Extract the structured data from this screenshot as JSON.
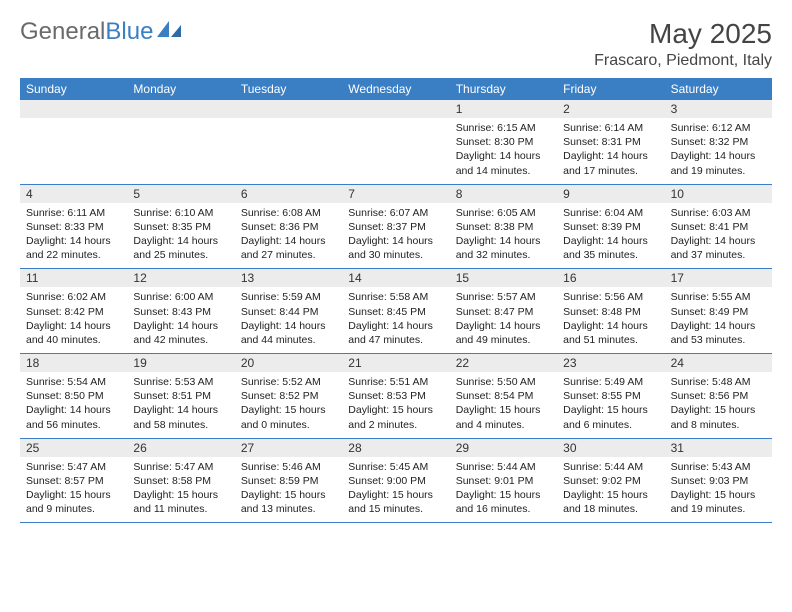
{
  "brand": {
    "text1": "General",
    "text2": "Blue"
  },
  "title": "May 2025",
  "location": "Frascaro, Piedmont, Italy",
  "colors": {
    "header_bar": "#3a7fc4",
    "num_strip": "#ececec",
    "row_border": "#3a7fc4",
    "text": "#222222",
    "logo_gray": "#6a6a6a",
    "logo_blue": "#3a7fc4",
    "background": "#ffffff"
  },
  "dow": [
    "Sunday",
    "Monday",
    "Tuesday",
    "Wednesday",
    "Thursday",
    "Friday",
    "Saturday"
  ],
  "weeks": [
    [
      {
        "n": "",
        "lines": []
      },
      {
        "n": "",
        "lines": []
      },
      {
        "n": "",
        "lines": []
      },
      {
        "n": "",
        "lines": []
      },
      {
        "n": "1",
        "lines": [
          "Sunrise: 6:15 AM",
          "Sunset: 8:30 PM",
          "Daylight: 14 hours",
          "and 14 minutes."
        ]
      },
      {
        "n": "2",
        "lines": [
          "Sunrise: 6:14 AM",
          "Sunset: 8:31 PM",
          "Daylight: 14 hours",
          "and 17 minutes."
        ]
      },
      {
        "n": "3",
        "lines": [
          "Sunrise: 6:12 AM",
          "Sunset: 8:32 PM",
          "Daylight: 14 hours",
          "and 19 minutes."
        ]
      }
    ],
    [
      {
        "n": "4",
        "lines": [
          "Sunrise: 6:11 AM",
          "Sunset: 8:33 PM",
          "Daylight: 14 hours",
          "and 22 minutes."
        ]
      },
      {
        "n": "5",
        "lines": [
          "Sunrise: 6:10 AM",
          "Sunset: 8:35 PM",
          "Daylight: 14 hours",
          "and 25 minutes."
        ]
      },
      {
        "n": "6",
        "lines": [
          "Sunrise: 6:08 AM",
          "Sunset: 8:36 PM",
          "Daylight: 14 hours",
          "and 27 minutes."
        ]
      },
      {
        "n": "7",
        "lines": [
          "Sunrise: 6:07 AM",
          "Sunset: 8:37 PM",
          "Daylight: 14 hours",
          "and 30 minutes."
        ]
      },
      {
        "n": "8",
        "lines": [
          "Sunrise: 6:05 AM",
          "Sunset: 8:38 PM",
          "Daylight: 14 hours",
          "and 32 minutes."
        ]
      },
      {
        "n": "9",
        "lines": [
          "Sunrise: 6:04 AM",
          "Sunset: 8:39 PM",
          "Daylight: 14 hours",
          "and 35 minutes."
        ]
      },
      {
        "n": "10",
        "lines": [
          "Sunrise: 6:03 AM",
          "Sunset: 8:41 PM",
          "Daylight: 14 hours",
          "and 37 minutes."
        ]
      }
    ],
    [
      {
        "n": "11",
        "lines": [
          "Sunrise: 6:02 AM",
          "Sunset: 8:42 PM",
          "Daylight: 14 hours",
          "and 40 minutes."
        ]
      },
      {
        "n": "12",
        "lines": [
          "Sunrise: 6:00 AM",
          "Sunset: 8:43 PM",
          "Daylight: 14 hours",
          "and 42 minutes."
        ]
      },
      {
        "n": "13",
        "lines": [
          "Sunrise: 5:59 AM",
          "Sunset: 8:44 PM",
          "Daylight: 14 hours",
          "and 44 minutes."
        ]
      },
      {
        "n": "14",
        "lines": [
          "Sunrise: 5:58 AM",
          "Sunset: 8:45 PM",
          "Daylight: 14 hours",
          "and 47 minutes."
        ]
      },
      {
        "n": "15",
        "lines": [
          "Sunrise: 5:57 AM",
          "Sunset: 8:47 PM",
          "Daylight: 14 hours",
          "and 49 minutes."
        ]
      },
      {
        "n": "16",
        "lines": [
          "Sunrise: 5:56 AM",
          "Sunset: 8:48 PM",
          "Daylight: 14 hours",
          "and 51 minutes."
        ]
      },
      {
        "n": "17",
        "lines": [
          "Sunrise: 5:55 AM",
          "Sunset: 8:49 PM",
          "Daylight: 14 hours",
          "and 53 minutes."
        ]
      }
    ],
    [
      {
        "n": "18",
        "lines": [
          "Sunrise: 5:54 AM",
          "Sunset: 8:50 PM",
          "Daylight: 14 hours",
          "and 56 minutes."
        ]
      },
      {
        "n": "19",
        "lines": [
          "Sunrise: 5:53 AM",
          "Sunset: 8:51 PM",
          "Daylight: 14 hours",
          "and 58 minutes."
        ]
      },
      {
        "n": "20",
        "lines": [
          "Sunrise: 5:52 AM",
          "Sunset: 8:52 PM",
          "Daylight: 15 hours",
          "and 0 minutes."
        ]
      },
      {
        "n": "21",
        "lines": [
          "Sunrise: 5:51 AM",
          "Sunset: 8:53 PM",
          "Daylight: 15 hours",
          "and 2 minutes."
        ]
      },
      {
        "n": "22",
        "lines": [
          "Sunrise: 5:50 AM",
          "Sunset: 8:54 PM",
          "Daylight: 15 hours",
          "and 4 minutes."
        ]
      },
      {
        "n": "23",
        "lines": [
          "Sunrise: 5:49 AM",
          "Sunset: 8:55 PM",
          "Daylight: 15 hours",
          "and 6 minutes."
        ]
      },
      {
        "n": "24",
        "lines": [
          "Sunrise: 5:48 AM",
          "Sunset: 8:56 PM",
          "Daylight: 15 hours",
          "and 8 minutes."
        ]
      }
    ],
    [
      {
        "n": "25",
        "lines": [
          "Sunrise: 5:47 AM",
          "Sunset: 8:57 PM",
          "Daylight: 15 hours",
          "and 9 minutes."
        ]
      },
      {
        "n": "26",
        "lines": [
          "Sunrise: 5:47 AM",
          "Sunset: 8:58 PM",
          "Daylight: 15 hours",
          "and 11 minutes."
        ]
      },
      {
        "n": "27",
        "lines": [
          "Sunrise: 5:46 AM",
          "Sunset: 8:59 PM",
          "Daylight: 15 hours",
          "and 13 minutes."
        ]
      },
      {
        "n": "28",
        "lines": [
          "Sunrise: 5:45 AM",
          "Sunset: 9:00 PM",
          "Daylight: 15 hours",
          "and 15 minutes."
        ]
      },
      {
        "n": "29",
        "lines": [
          "Sunrise: 5:44 AM",
          "Sunset: 9:01 PM",
          "Daylight: 15 hours",
          "and 16 minutes."
        ]
      },
      {
        "n": "30",
        "lines": [
          "Sunrise: 5:44 AM",
          "Sunset: 9:02 PM",
          "Daylight: 15 hours",
          "and 18 minutes."
        ]
      },
      {
        "n": "31",
        "lines": [
          "Sunrise: 5:43 AM",
          "Sunset: 9:03 PM",
          "Daylight: 15 hours",
          "and 19 minutes."
        ]
      }
    ]
  ]
}
